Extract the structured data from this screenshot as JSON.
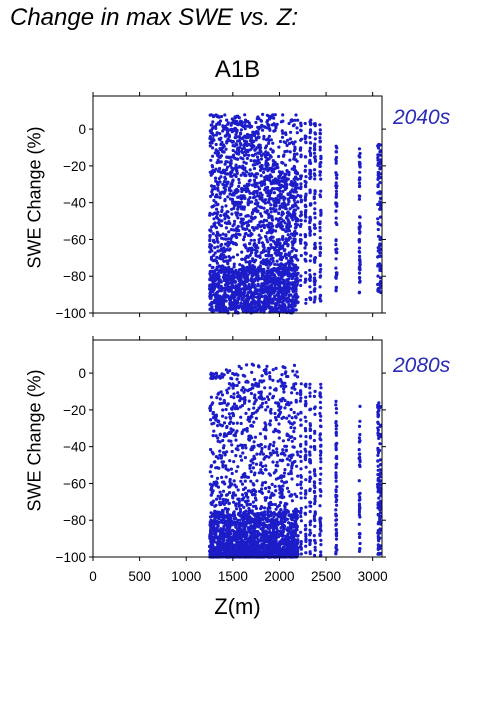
{
  "heading": "Change in max SWE vs. Z:",
  "scenario": "A1B",
  "colors": {
    "points": "#1c1cc8",
    "period_label": "#2a2ab8",
    "axis": "#000000"
  },
  "chart_data": [
    {
      "type": "scatter",
      "title": "2040s",
      "ylabel": "SWE Change (%)",
      "xlabel": "",
      "xlim": [
        0,
        3100
      ],
      "ylim": [
        -100,
        18
      ],
      "xticks": [
        0,
        500,
        1000,
        1500,
        2000,
        2500,
        3000
      ],
      "yticks": [
        -100,
        -80,
        -60,
        -40,
        -20,
        0
      ],
      "description": "Dense cloud of points for Z between ~1250 and ~2200 m spanning -100% to about +8%; sparser vertical columns of points at higher elevations (~2250-3080 m).",
      "x_range_of_points": [
        1250,
        3080
      ],
      "y_range_of_points": [
        -100,
        8
      ]
    },
    {
      "type": "scatter",
      "title": "2080s",
      "ylabel": "SWE Change (%)",
      "xlabel": "Z(m)",
      "xlim": [
        0,
        3100
      ],
      "ylim": [
        -100,
        18
      ],
      "xticks": [
        0,
        500,
        1000,
        1500,
        2000,
        2500,
        3000
      ],
      "yticks": [
        -100,
        -80,
        -60,
        -40,
        -20,
        0
      ],
      "description": "Points concentrated near -100% for Z ~1250-2200 m, with scattered values up to about +5%; sparser vertical columns of points at higher elevations (~2250-3080 m).",
      "x_range_of_points": [
        1250,
        3080
      ],
      "y_range_of_points": [
        -100,
        5
      ]
    }
  ]
}
